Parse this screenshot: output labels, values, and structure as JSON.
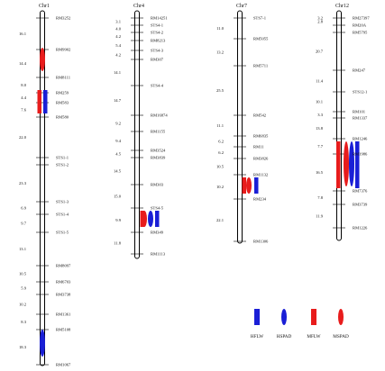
{
  "colors": {
    "hflw": "#1a1fd6",
    "hspad": "#1a1fd6",
    "mflw": "#e81c1c",
    "mspad": "#e81c1c"
  },
  "chromosomes": [
    {
      "name": "Chr1",
      "markers": [
        {
          "label": "RM3252",
          "dist": ""
        },
        {
          "label": "RM9902",
          "dist": "16.1"
        },
        {
          "label": "RM8111",
          "dist": "14.4"
        },
        {
          "label": "RM259",
          "dist": "8.0"
        },
        {
          "label": "RM583",
          "dist": "4.4"
        },
        {
          "label": "RM580",
          "dist": "7.6"
        },
        {
          "label": "STS1-1",
          "dist": "22.0"
        },
        {
          "label": "STS1-2",
          "dist": ""
        },
        {
          "label": "STS1-3",
          "dist": "23.3"
        },
        {
          "label": "STS1-4",
          "dist": "6.9"
        },
        {
          "label": "STS1-5",
          "dist": "9.7"
        },
        {
          "label": "RM8097",
          "dist": "13.1"
        },
        {
          "label": "RM6703",
          "dist": "10.5"
        },
        {
          "label": "RM3738",
          "dist": "5.9"
        },
        {
          "label": "RM1361",
          "dist": "10.2"
        },
        {
          "label": "RM5108",
          "dist": "8.3"
        },
        {
          "label": "RM1067",
          "dist": "18.3"
        }
      ]
    },
    {
      "name": "Chr4",
      "markers": [
        {
          "label": "RM14251",
          "dist": ""
        },
        {
          "label": "STS4-1",
          "dist": "3.1"
        },
        {
          "label": "STS4-2",
          "dist": "4.0"
        },
        {
          "label": "RM8213",
          "dist": "4.2"
        },
        {
          "label": "STS4-3",
          "dist": "5.4"
        },
        {
          "label": "RM307",
          "dist": "4.2"
        },
        {
          "label": "STS4-4",
          "dist": "14.1"
        },
        {
          "label": "RM16874",
          "dist": "14.7"
        },
        {
          "label": "RM1155",
          "dist": "9.2"
        },
        {
          "label": "RM3524",
          "dist": "9.4"
        },
        {
          "label": "RM3839",
          "dist": "4.5"
        },
        {
          "label": "RM303",
          "dist": "14.5"
        },
        {
          "label": "STS4-5",
          "dist": "15.0"
        },
        {
          "label": "RM349",
          "dist": "9.9"
        },
        {
          "label": "RM1113",
          "dist": "11.8"
        }
      ]
    },
    {
      "name": "Chr7",
      "markers": [
        {
          "label": "STS7-1",
          "dist": ""
        },
        {
          "label": "RM5055",
          "dist": "11.0"
        },
        {
          "label": "RM5711",
          "dist": "13.2"
        },
        {
          "label": "RM542",
          "dist": "25.5"
        },
        {
          "label": "RM6835",
          "dist": "11.1"
        },
        {
          "label": "RM11",
          "dist": "6.2"
        },
        {
          "label": "RM3826",
          "dist": "6.2"
        },
        {
          "label": "RM1132",
          "dist": "10.5"
        },
        {
          "label": "RM234",
          "dist": "10.2"
        },
        {
          "label": "RM1306",
          "dist": "22.1"
        }
      ]
    },
    {
      "name": "Chr12",
      "markers": [
        {
          "label": "RM27397",
          "dist": "3.2"
        },
        {
          "label": "RM20A",
          "dist": "2.8"
        },
        {
          "label": "RM5795",
          "dist": ""
        },
        {
          "label": "RM247",
          "dist": "20.7"
        },
        {
          "label": "STS12-1",
          "dist": "11.4"
        },
        {
          "label": "RM101",
          "dist": "10.1"
        },
        {
          "label": "RM1337",
          "dist": "3.3"
        },
        {
          "label": "RM1246",
          "dist": "13.8"
        },
        {
          "label": "RM1986",
          "dist": "7.7"
        },
        {
          "label": "RM7376",
          "dist": "16.5"
        },
        {
          "label": "RM3739",
          "dist": "7.8"
        },
        {
          "label": "RM1226",
          "dist": "11.9"
        }
      ]
    }
  ],
  "legend": [
    {
      "label": "HFLW",
      "shape": "bar",
      "color": "#1a1fd6"
    },
    {
      "label": "HSPAD",
      "shape": "ellipse",
      "color": "#1a1fd6"
    },
    {
      "label": "MFLW",
      "shape": "bar",
      "color": "#e81c1c"
    },
    {
      "label": "MSPAD",
      "shape": "ellipse",
      "color": "#e81c1c"
    }
  ]
}
